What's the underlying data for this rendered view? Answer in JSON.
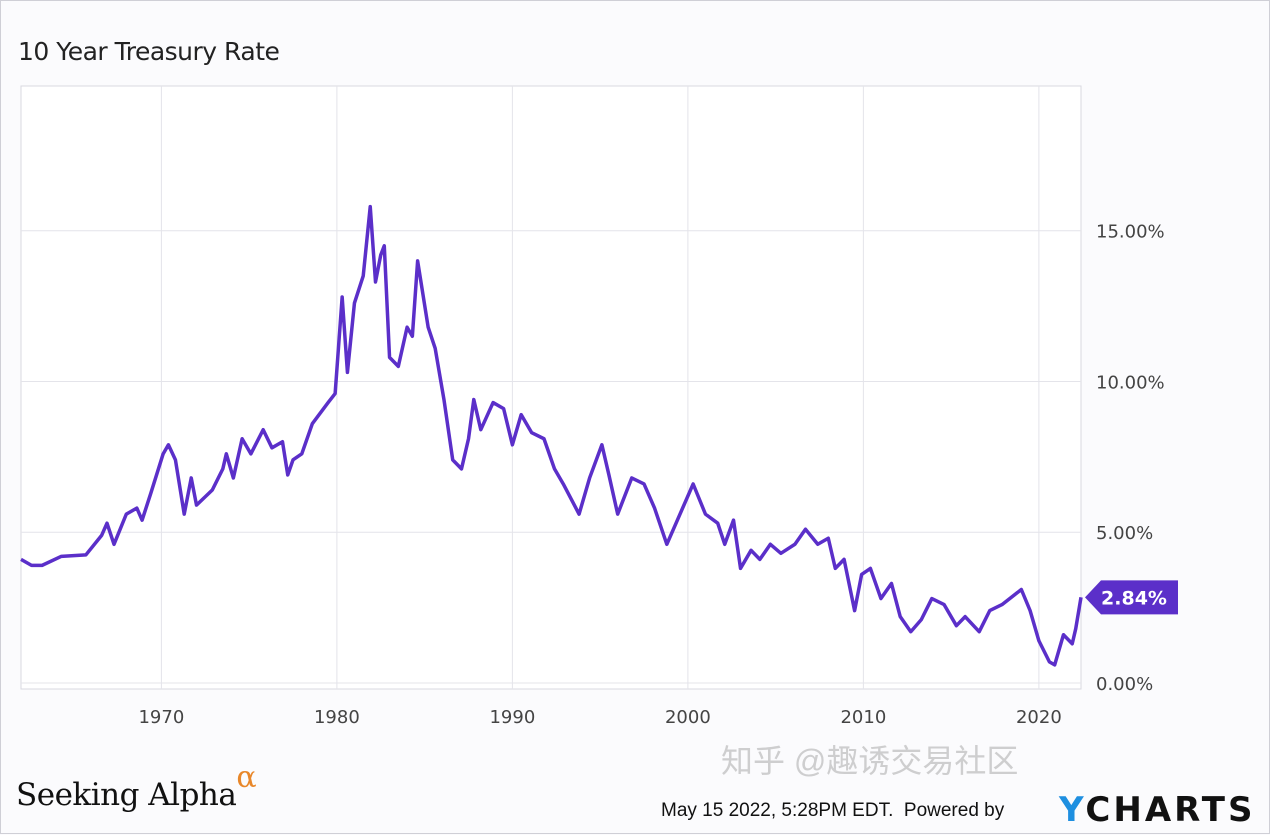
{
  "chart_data": {
    "type": "line",
    "title": "10 Year Treasury Rate",
    "xlabel": "",
    "ylabel": "",
    "xlim": [
      1962,
      2022.4
    ],
    "ylim": [
      -0.2,
      19.8
    ],
    "x_ticks": [
      1970,
      1980,
      1990,
      2000,
      2010,
      2020
    ],
    "x_tick_labels": [
      "1970",
      "1980",
      "1990",
      "2000",
      "2010",
      "2020"
    ],
    "y_ticks": [
      0,
      5,
      10,
      15
    ],
    "y_tick_labels": [
      "0.00%",
      "5.00%",
      "10.00%",
      "15.00%"
    ],
    "grid": true,
    "line_color": "#5b2fc9",
    "last_value_label": "2.84%",
    "series": [
      {
        "name": "10 Year Treasury Rate",
        "points": [
          [
            1962.0,
            4.1
          ],
          [
            1962.6,
            3.9
          ],
          [
            1963.2,
            3.9
          ],
          [
            1964.3,
            4.2
          ],
          [
            1965.7,
            4.25
          ],
          [
            1966.6,
            4.9
          ],
          [
            1966.9,
            5.3
          ],
          [
            1967.3,
            4.6
          ],
          [
            1968.0,
            5.6
          ],
          [
            1968.6,
            5.8
          ],
          [
            1968.9,
            5.4
          ],
          [
            1969.4,
            6.3
          ],
          [
            1970.1,
            7.6
          ],
          [
            1970.4,
            7.9
          ],
          [
            1970.8,
            7.4
          ],
          [
            1971.3,
            5.6
          ],
          [
            1971.7,
            6.8
          ],
          [
            1972.0,
            5.9
          ],
          [
            1972.9,
            6.4
          ],
          [
            1973.5,
            7.1
          ],
          [
            1973.7,
            7.6
          ],
          [
            1974.1,
            6.8
          ],
          [
            1974.6,
            8.1
          ],
          [
            1975.1,
            7.6
          ],
          [
            1975.8,
            8.4
          ],
          [
            1976.3,
            7.8
          ],
          [
            1976.9,
            8.0
          ],
          [
            1977.2,
            6.9
          ],
          [
            1977.5,
            7.4
          ],
          [
            1978.0,
            7.6
          ],
          [
            1978.6,
            8.6
          ],
          [
            1979.5,
            9.3
          ],
          [
            1979.9,
            9.6
          ],
          [
            1980.3,
            12.8
          ],
          [
            1980.6,
            10.3
          ],
          [
            1981.0,
            12.6
          ],
          [
            1981.5,
            13.5
          ],
          [
            1981.9,
            15.8
          ],
          [
            1982.2,
            13.3
          ],
          [
            1982.5,
            14.2
          ],
          [
            1982.7,
            14.5
          ],
          [
            1983.0,
            10.8
          ],
          [
            1983.5,
            10.5
          ],
          [
            1984.0,
            11.8
          ],
          [
            1984.3,
            11.5
          ],
          [
            1984.6,
            14.0
          ],
          [
            1985.2,
            11.8
          ],
          [
            1985.6,
            11.1
          ],
          [
            1986.1,
            9.4
          ],
          [
            1986.6,
            7.4
          ],
          [
            1987.1,
            7.1
          ],
          [
            1987.5,
            8.1
          ],
          [
            1987.8,
            9.4
          ],
          [
            1988.2,
            8.4
          ],
          [
            1988.9,
            9.3
          ],
          [
            1989.5,
            9.1
          ],
          [
            1990.0,
            7.9
          ],
          [
            1990.5,
            8.9
          ],
          [
            1991.1,
            8.3
          ],
          [
            1991.8,
            8.1
          ],
          [
            1992.4,
            7.1
          ],
          [
            1992.9,
            6.6
          ],
          [
            1993.8,
            5.6
          ],
          [
            1994.4,
            6.8
          ],
          [
            1995.1,
            7.9
          ],
          [
            1995.5,
            6.9
          ],
          [
            1996.0,
            5.6
          ],
          [
            1996.8,
            6.8
          ],
          [
            1997.5,
            6.6
          ],
          [
            1998.1,
            5.8
          ],
          [
            1998.8,
            4.6
          ],
          [
            1999.4,
            5.4
          ],
          [
            2000.3,
            6.6
          ],
          [
            2001.0,
            5.6
          ],
          [
            2001.7,
            5.3
          ],
          [
            2002.1,
            4.6
          ],
          [
            2002.6,
            5.4
          ],
          [
            2003.0,
            3.8
          ],
          [
            2003.6,
            4.4
          ],
          [
            2004.1,
            4.1
          ],
          [
            2004.7,
            4.6
          ],
          [
            2005.3,
            4.3
          ],
          [
            2006.1,
            4.6
          ],
          [
            2006.7,
            5.1
          ],
          [
            2007.4,
            4.6
          ],
          [
            2008.0,
            4.8
          ],
          [
            2008.4,
            3.8
          ],
          [
            2008.9,
            4.1
          ],
          [
            2009.5,
            2.4
          ],
          [
            2009.9,
            3.6
          ],
          [
            2010.4,
            3.8
          ],
          [
            2011.0,
            2.8
          ],
          [
            2011.6,
            3.3
          ],
          [
            2012.1,
            2.2
          ],
          [
            2012.7,
            1.7
          ],
          [
            2013.3,
            2.1
          ],
          [
            2013.9,
            2.8
          ],
          [
            2014.6,
            2.6
          ],
          [
            2015.3,
            1.9
          ],
          [
            2015.8,
            2.2
          ],
          [
            2016.6,
            1.7
          ],
          [
            2017.2,
            2.4
          ],
          [
            2017.9,
            2.6
          ],
          [
            2019.0,
            3.1
          ],
          [
            2019.5,
            2.4
          ],
          [
            2020.0,
            1.4
          ],
          [
            2020.6,
            0.7
          ],
          [
            2020.9,
            0.6
          ],
          [
            2021.4,
            1.6
          ],
          [
            2021.9,
            1.3
          ],
          [
            2022.1,
            1.8
          ],
          [
            2022.4,
            2.84
          ]
        ]
      }
    ]
  },
  "branding": {
    "logo": "Seeking Alpha",
    "logo_mark": "α",
    "watermark": "知乎 @趣诱交易社区",
    "timestamp": "May 15 2022, 5:28PM EDT.",
    "powered_by": "Powered by",
    "provider_mark": "Y",
    "provider": "CHARTS"
  }
}
